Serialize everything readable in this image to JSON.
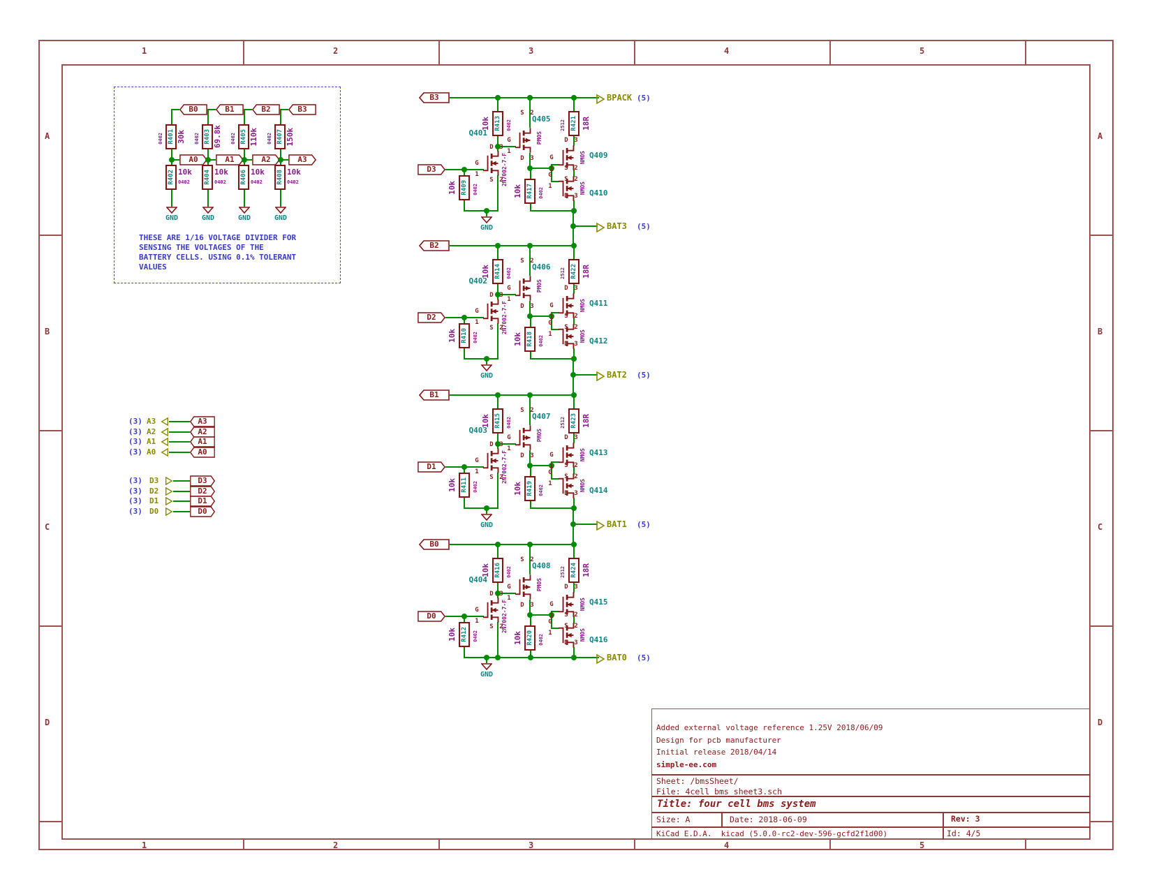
{
  "frame": {
    "cols": [
      "1",
      "2",
      "3",
      "4",
      "5"
    ],
    "rows": [
      "A",
      "B",
      "C",
      "D"
    ]
  },
  "divider_note": {
    "lines": [
      "THESE ARE 1/16 VOLTAGE DIVIDER FOR",
      "SENSING THE VOLTAGES OF THE",
      "BATTERY CELLS. USING 0.1% TOLERANT",
      "VALUES"
    ]
  },
  "dividers": {
    "cols": [
      {
        "b": "B0",
        "r_top": "R401",
        "r_top_val": "30k",
        "a": "A0",
        "r_bot": "R402"
      },
      {
        "b": "B1",
        "r_top": "R403",
        "r_top_val": "69.8k",
        "a": "A1",
        "r_bot": "R404"
      },
      {
        "b": "B2",
        "r_top": "R405",
        "r_top_val": "110k",
        "a": "A2",
        "r_bot": "R406"
      },
      {
        "b": "B3",
        "r_top": "R407",
        "r_top_val": "150k",
        "a": "A3",
        "r_bot": "R408"
      }
    ]
  },
  "signals": {
    "a_rows": [
      {
        "page": "(3)",
        "name": "A3"
      },
      {
        "page": "(3)",
        "name": "A2"
      },
      {
        "page": "(3)",
        "name": "A1"
      },
      {
        "page": "(3)",
        "name": "A0"
      }
    ],
    "d_rows": [
      {
        "page": "(3)",
        "name": "D3"
      },
      {
        "page": "(3)",
        "name": "D2"
      },
      {
        "page": "(3)",
        "name": "D1"
      },
      {
        "page": "(3)",
        "name": "D0"
      }
    ]
  },
  "blocks": [
    {
      "b": "B3",
      "d": "D3",
      "r_top": "R413",
      "r_pull": "R409",
      "r_mid": "R417",
      "r_big": "R421",
      "q_small": "Q401",
      "q_pmos": "Q405",
      "q_n1": "Q409",
      "q_n2": "Q410"
    },
    {
      "b": "B2",
      "d": "D2",
      "r_top": "R414",
      "r_pull": "R410",
      "r_mid": "R418",
      "r_big": "R422",
      "q_small": "Q402",
      "q_pmos": "Q406",
      "q_n1": "Q411",
      "q_n2": "Q412"
    },
    {
      "b": "B1",
      "d": "D1",
      "r_top": "R415",
      "r_pull": "R411",
      "r_mid": "R419",
      "r_big": "R423",
      "q_small": "Q403",
      "q_pmos": "Q407",
      "q_n1": "Q413",
      "q_n2": "Q414"
    },
    {
      "b": "B0",
      "d": "D0",
      "r_top": "R416",
      "r_pull": "R412",
      "r_mid": "R420",
      "r_big": "R424",
      "q_small": "Q404",
      "q_pmos": "Q408",
      "q_n1": "Q415",
      "q_n2": "Q416"
    }
  ],
  "bus": [
    {
      "label": "BPACK",
      "page": "(5)"
    },
    {
      "label": "BAT3",
      "page": "(5)"
    },
    {
      "label": "BAT2",
      "page": "(5)"
    },
    {
      "label": "BAT1",
      "page": "(5)"
    },
    {
      "label": "BAT0",
      "page": "(5)"
    }
  ],
  "common": {
    "gnd": "GND",
    "r10k": "10k",
    "r18R": "18R",
    "fp0402": "0402",
    "fp2512": "2512",
    "pmos": "PMOS",
    "nmos": "NMOS",
    "nfet_part": "2N7002-7-F",
    "g": "G",
    "d": "D",
    "s": "S",
    "p1": "1",
    "p2": "2",
    "p3": "3"
  },
  "title_block": {
    "comments": [
      "Added external voltage reference 1.25V 2018/06/09",
      "Design for pcb manufacturer",
      "Initial release 2018/04/14"
    ],
    "website": "simple-ee.com",
    "sheet": "Sheet: /bmsSheet/",
    "file": "File: 4cell_bms_sheet3.sch",
    "title": "Title: four cell bms system",
    "size": "Size: A",
    "date": "Date: 2018-06-09",
    "rev": "Rev: 3",
    "tool": "KiCad E.D.A.  kicad (5.0.0-rc2-dev-596-gcfd2f1d00)",
    "id": "Id: 4/5"
  }
}
